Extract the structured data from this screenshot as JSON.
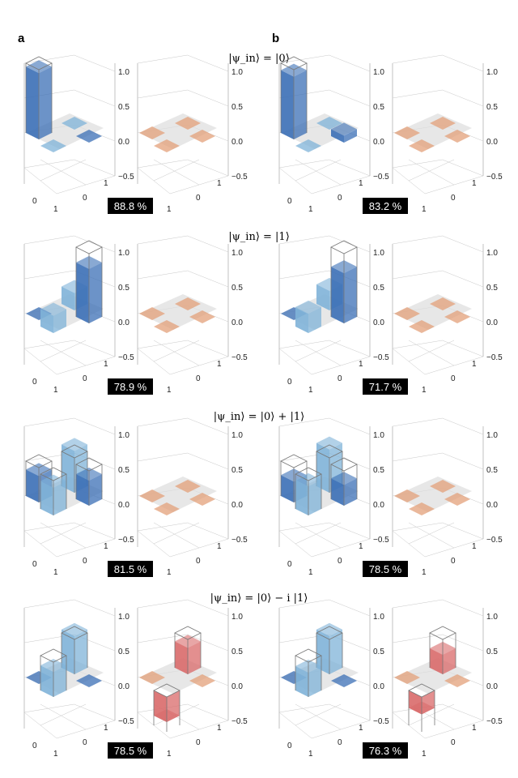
{
  "panels": [
    {
      "label": "a"
    },
    {
      "label": "b"
    }
  ],
  "rows": [
    {
      "title": "|ψ_in⟩ = |0⟩"
    },
    {
      "title": "|ψ_in⟩ = |1⟩"
    },
    {
      "title": "|ψ_in⟩ = |0⟩ + |1⟩"
    },
    {
      "title": "|ψ_in⟩ = |0⟩ − i |1⟩"
    }
  ],
  "fidelities": {
    "a": [
      "88.8 %",
      "78.9 %",
      "81.5 %",
      "78.5 %"
    ],
    "b": [
      "83.2 %",
      "71.7 %",
      "78.5 %",
      "76.3 %"
    ]
  },
  "axis": {
    "z_ticks": [
      "1.0",
      "0.5",
      "0.0",
      "−0.5"
    ],
    "x_ticks": [
      "0",
      "1"
    ],
    "y_ticks": [
      "0",
      "1"
    ]
  },
  "colors": {
    "real_bar": "#3b6fb6",
    "real_bar_light": "#7fb3d8",
    "imag_bar": "#e3a07a",
    "imag_bar_strong": "#d96a6a",
    "floor": "#dddddd"
  },
  "chart_data": {
    "type": "3d-bar",
    "description_matrix_order": "[[00, 01], [10, 11]]",
    "value_range": [
      -0.5,
      1.0
    ],
    "plots": [
      {
        "panel": "a",
        "row": 0,
        "part": "real",
        "values": [
          [
            0.95,
            0.02
          ],
          [
            0.02,
            0.05
          ]
        ],
        "ideal": [
          [
            1,
            0
          ],
          [
            0,
            0
          ]
        ]
      },
      {
        "panel": "a",
        "row": 0,
        "part": "imag",
        "values": [
          [
            0,
            0.02
          ],
          [
            -0.02,
            0
          ]
        ],
        "ideal": [
          [
            0,
            0
          ],
          [
            0,
            0
          ]
        ]
      },
      {
        "panel": "a",
        "row": 1,
        "part": "real",
        "values": [
          [
            0.03,
            0.25
          ],
          [
            0.25,
            0.78
          ]
        ],
        "ideal": [
          [
            0,
            0
          ],
          [
            0,
            1
          ]
        ]
      },
      {
        "panel": "a",
        "row": 1,
        "part": "imag",
        "values": [
          [
            0,
            0.02
          ],
          [
            -0.02,
            0
          ]
        ],
        "ideal": [
          [
            0,
            0
          ],
          [
            0,
            0
          ]
        ]
      },
      {
        "panel": "a",
        "row": 2,
        "part": "real",
        "values": [
          [
            0.38,
            0.6
          ],
          [
            0.4,
            0.36
          ]
        ],
        "ideal": [
          [
            0.5,
            0.5
          ],
          [
            0.5,
            0.5
          ]
        ]
      },
      {
        "panel": "a",
        "row": 2,
        "part": "imag",
        "values": [
          [
            0,
            0.03
          ],
          [
            -0.03,
            0
          ]
        ],
        "ideal": [
          [
            0,
            0
          ],
          [
            0,
            0
          ]
        ]
      },
      {
        "panel": "a",
        "row": 3,
        "part": "real",
        "values": [
          [
            0.03,
            0.55
          ],
          [
            0.36,
            0.03
          ]
        ],
        "ideal": [
          [
            0,
            0.5
          ],
          [
            0.5,
            0
          ]
        ]
      },
      {
        "panel": "a",
        "row": 3,
        "part": "imag",
        "values": [
          [
            0,
            0.38
          ],
          [
            -0.36,
            0
          ]
        ],
        "ideal": [
          [
            0,
            0.5
          ],
          [
            -0.5,
            0
          ]
        ]
      },
      {
        "panel": "b",
        "row": 0,
        "part": "real",
        "values": [
          [
            0.9,
            0.02
          ],
          [
            0.02,
            0.1
          ]
        ],
        "ideal": [
          [
            1,
            0
          ],
          [
            0,
            0
          ]
        ]
      },
      {
        "panel": "b",
        "row": 0,
        "part": "imag",
        "values": [
          [
            0,
            0.02
          ],
          [
            -0.02,
            0
          ]
        ],
        "ideal": [
          [
            0,
            0
          ],
          [
            0,
            0
          ]
        ]
      },
      {
        "panel": "b",
        "row": 1,
        "part": "real",
        "values": [
          [
            0.03,
            0.28
          ],
          [
            0.28,
            0.72
          ]
        ],
        "ideal": [
          [
            0,
            0
          ],
          [
            0,
            1
          ]
        ]
      },
      {
        "panel": "b",
        "row": 1,
        "part": "imag",
        "values": [
          [
            0,
            0.02
          ],
          [
            -0.02,
            0
          ]
        ],
        "ideal": [
          [
            0,
            0
          ],
          [
            0,
            0
          ]
        ]
      },
      {
        "panel": "b",
        "row": 2,
        "part": "real",
        "values": [
          [
            0.3,
            0.62
          ],
          [
            0.42,
            0.3
          ]
        ],
        "ideal": [
          [
            0.5,
            0.5
          ],
          [
            0.5,
            0.5
          ]
        ]
      },
      {
        "panel": "b",
        "row": 2,
        "part": "imag",
        "values": [
          [
            0,
            0.02
          ],
          [
            -0.02,
            0
          ]
        ],
        "ideal": [
          [
            0,
            0
          ],
          [
            0,
            0
          ]
        ]
      },
      {
        "panel": "b",
        "row": 3,
        "part": "real",
        "values": [
          [
            0.03,
            0.55
          ],
          [
            0.35,
            0.03
          ]
        ],
        "ideal": [
          [
            0,
            0.5
          ],
          [
            0.5,
            0
          ]
        ]
      },
      {
        "panel": "b",
        "row": 3,
        "part": "imag",
        "values": [
          [
            0,
            0.28
          ],
          [
            -0.25,
            0
          ]
        ],
        "ideal": [
          [
            0,
            0.5
          ],
          [
            -0.5,
            0
          ]
        ]
      }
    ]
  }
}
